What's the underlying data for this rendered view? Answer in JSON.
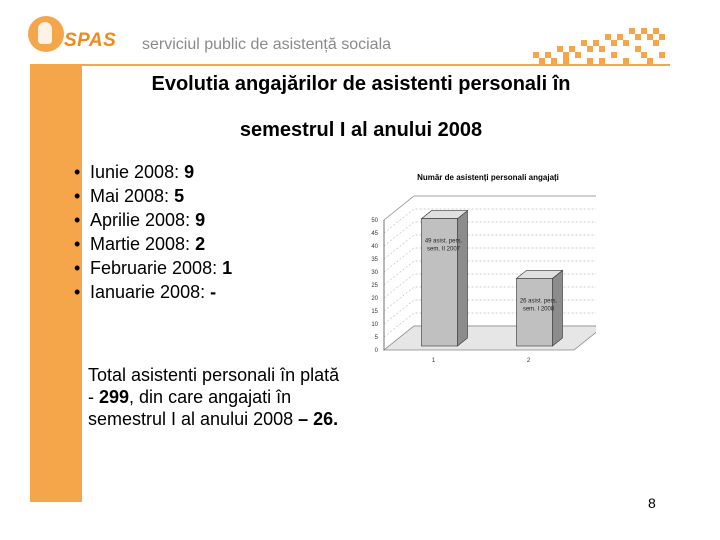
{
  "header": {
    "logo_text": "SPAS",
    "org_name": "serviciul public de asistență sociala",
    "accent_color": "#f5a54a"
  },
  "title": {
    "line1": "Evolutia angajărilor de asistenti personali în",
    "line2": "semestrul I al anului 2008"
  },
  "bullets": [
    {
      "label": "Iunie 2008: ",
      "value": "9"
    },
    {
      "label": "Mai 2008: ",
      "value": "5"
    },
    {
      "label": "Aprilie 2008: ",
      "value": "9"
    },
    {
      "label": "Martie 2008: ",
      "value": "2"
    },
    {
      "label": "Februarie 2008: ",
      "value": "1"
    },
    {
      "label": "Ianuarie 2008: ",
      "value": "-"
    }
  ],
  "total": {
    "prefix": "Total asistenti personali în plată - ",
    "count": "299",
    "middle": ", din care angajati în semestrul I al anului 2008 ",
    "hired": "– 26."
  },
  "chart_data": {
    "type": "bar",
    "title": "Număr de asistenți personali angajați",
    "categories": [
      "1",
      "2"
    ],
    "values": [
      49,
      26
    ],
    "data_labels": [
      "49 asist. pers. sem. II 2007",
      "26 asist. pers. sem. I 2008"
    ],
    "yticks": [
      0,
      5,
      10,
      15,
      20,
      25,
      30,
      35,
      40,
      45,
      50
    ],
    "ylim": [
      0,
      50
    ],
    "bar_color": "#c0c0c0",
    "grid": true
  },
  "page_number": "8"
}
